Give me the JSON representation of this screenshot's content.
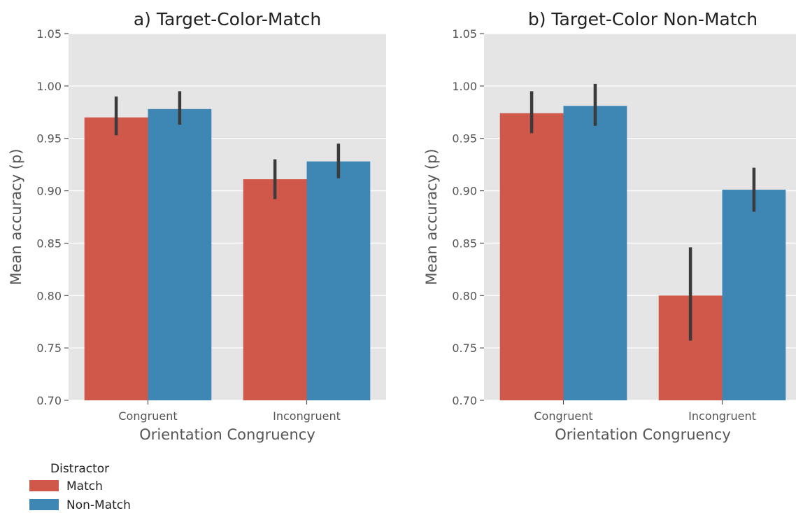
{
  "legend": {
    "title": "Distractor",
    "entries": [
      {
        "label": "Match",
        "color": "#d0584a"
      },
      {
        "label": "Non-Match",
        "color": "#3e87b5"
      }
    ]
  },
  "style": {
    "plot_background": "#e5e5e5",
    "grid_color": "#ffffff",
    "errorbar_color": "#3b3b3b"
  },
  "chart_data": [
    {
      "type": "bar",
      "title": "a) Target-Color-Match",
      "xlabel": "Orientation Congruency",
      "ylabel": "Mean accuracy (p)",
      "categories": [
        "Congruent",
        "Incongruent"
      ],
      "ylim": [
        0.7,
        1.05
      ],
      "yticks": [
        "0.70",
        "0.75",
        "0.80",
        "0.85",
        "0.90",
        "0.95",
        "1.00",
        "1.05"
      ],
      "grid": true,
      "legend_position": "bottom-left",
      "series": [
        {
          "name": "Match",
          "color": "#d0584a",
          "values": [
            0.97,
            0.911
          ],
          "err_low": [
            0.953,
            0.892
          ],
          "err_high": [
            0.99,
            0.93
          ]
        },
        {
          "name": "Non-Match",
          "color": "#3e87b5",
          "values": [
            0.978,
            0.928
          ],
          "err_low": [
            0.963,
            0.912
          ],
          "err_high": [
            0.995,
            0.945
          ]
        }
      ]
    },
    {
      "type": "bar",
      "title": "b) Target-Color Non-Match",
      "xlabel": "Orientation Congruency",
      "ylabel": "Mean accuracy (p)",
      "categories": [
        "Congruent",
        "Incongruent"
      ],
      "ylim": [
        0.7,
        1.05
      ],
      "yticks": [
        "0.70",
        "0.75",
        "0.80",
        "0.85",
        "0.90",
        "0.95",
        "1.00",
        "1.05"
      ],
      "grid": true,
      "legend_position": "bottom-left",
      "series": [
        {
          "name": "Match",
          "color": "#d0584a",
          "values": [
            0.974,
            0.8
          ],
          "err_low": [
            0.955,
            0.757
          ],
          "err_high": [
            0.995,
            0.846
          ]
        },
        {
          "name": "Non-Match",
          "color": "#3e87b5",
          "values": [
            0.981,
            0.901
          ],
          "err_low": [
            0.962,
            0.88
          ],
          "err_high": [
            1.002,
            0.922
          ]
        }
      ]
    }
  ]
}
